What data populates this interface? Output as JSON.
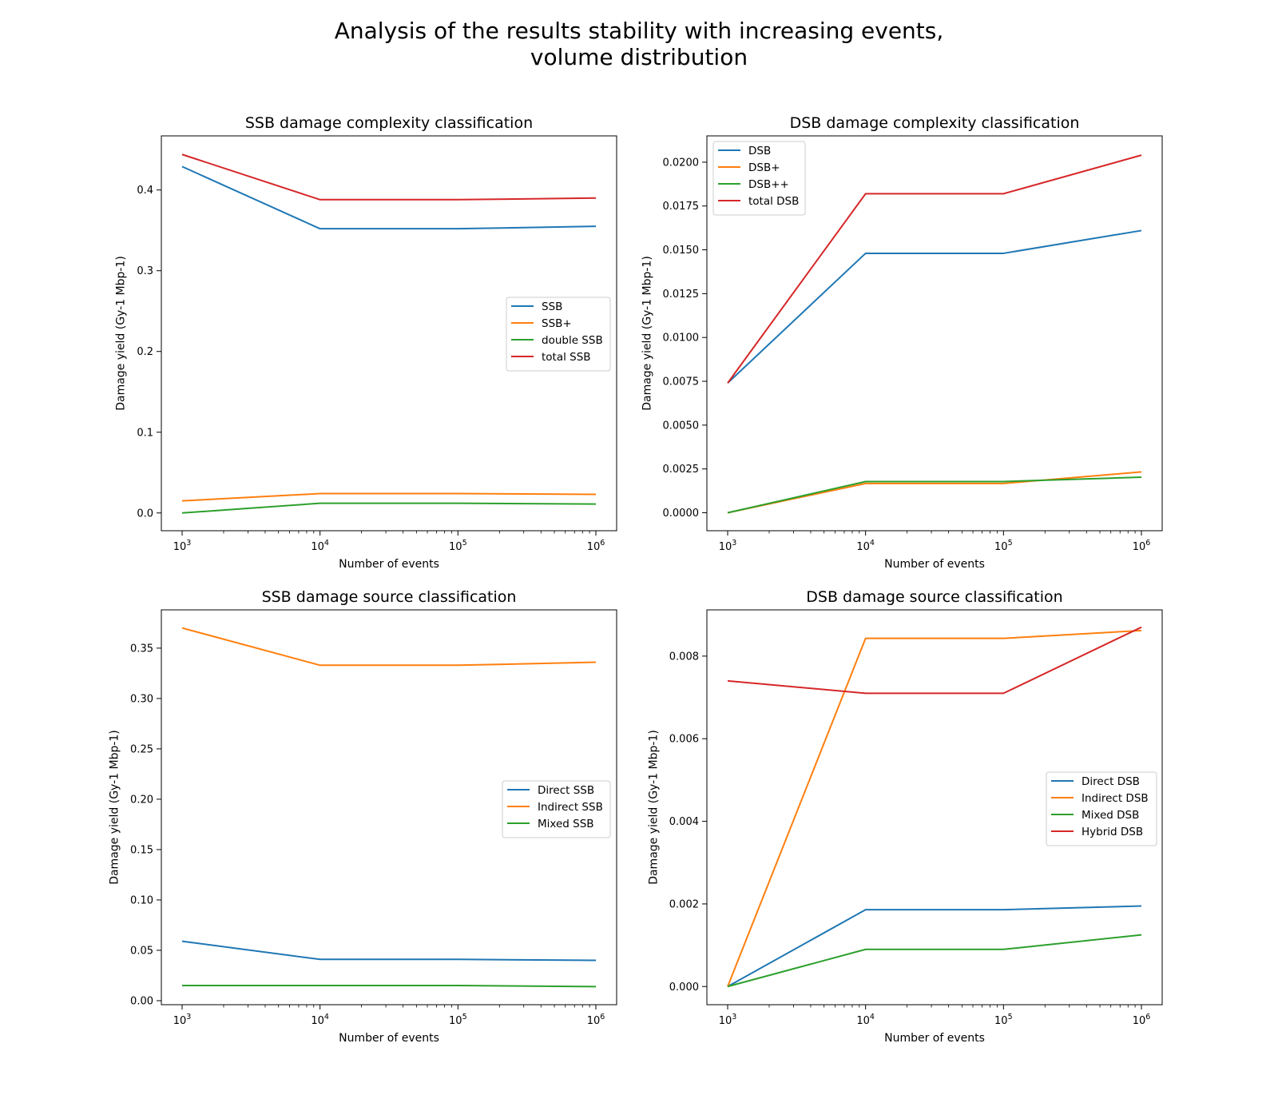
{
  "suptitle": {
    "line1": "Analysis of the results stability with increasing events,",
    "line2": "volume distribution"
  },
  "colors": {
    "blue": "#1f77b4",
    "orange": "#ff7f0e",
    "green": "#2ca02c",
    "red": "#d62728"
  },
  "chart_data": [
    {
      "type": "line",
      "title": "SSB damage complexity classification",
      "xlabel": "Number of events",
      "ylabel": "Damage yield (Gy-1 Mbp-1)",
      "xscale": "log",
      "x": [
        1000,
        10000,
        100000,
        1000000
      ],
      "xticks": [
        1000,
        10000,
        100000,
        1000000
      ],
      "xtick_labels": [
        [
          "10",
          "3"
        ],
        [
          "10",
          "4"
        ],
        [
          "10",
          "5"
        ],
        [
          "10",
          "6"
        ]
      ],
      "ylim": [
        -0.022,
        0.467
      ],
      "yticks": [
        0.0,
        0.1,
        0.2,
        0.3,
        0.4
      ],
      "ytick_labels": [
        "0.0",
        "0.1",
        "0.2",
        "0.3",
        "0.4"
      ],
      "legend_position": "center-right",
      "series": [
        {
          "name": "SSB",
          "color": "#1f77b4",
          "values": [
            0.429,
            0.352,
            0.352,
            0.355
          ]
        },
        {
          "name": "SSB+",
          "color": "#ff7f0e",
          "values": [
            0.015,
            0.024,
            0.024,
            0.023
          ]
        },
        {
          "name": "double SSB",
          "color": "#2ca02c",
          "values": [
            0.0,
            0.012,
            0.012,
            0.011
          ]
        },
        {
          "name": "total SSB",
          "color": "#d62728",
          "values": [
            0.444,
            0.388,
            0.388,
            0.39
          ]
        }
      ]
    },
    {
      "type": "line",
      "title": "DSB damage complexity classification",
      "xlabel": "Number of events",
      "ylabel": "Damage yield (Gy-1 Mbp-1)",
      "xscale": "log",
      "x": [
        1000,
        10000,
        100000,
        1000000
      ],
      "xticks": [
        1000,
        10000,
        100000,
        1000000
      ],
      "xtick_labels": [
        [
          "10",
          "3"
        ],
        [
          "10",
          "4"
        ],
        [
          "10",
          "5"
        ],
        [
          "10",
          "6"
        ]
      ],
      "ylim": [
        -0.001025,
        0.0215
      ],
      "yticks": [
        0.0,
        0.0025,
        0.005,
        0.0075,
        0.01,
        0.0125,
        0.015,
        0.0175,
        0.02
      ],
      "ytick_labels": [
        "0.0000",
        "0.0025",
        "0.0050",
        "0.0075",
        "0.0100",
        "0.0125",
        "0.0150",
        "0.0175",
        "0.0200"
      ],
      "legend_position": "upper-left",
      "series": [
        {
          "name": "DSB",
          "color": "#1f77b4",
          "values": [
            0.0074,
            0.0148,
            0.0148,
            0.0161
          ]
        },
        {
          "name": "DSB+",
          "color": "#ff7f0e",
          "values": [
            0.0,
            0.00167,
            0.00167,
            0.00233
          ]
        },
        {
          "name": "DSB++",
          "color": "#2ca02c",
          "values": [
            0.0,
            0.00178,
            0.00178,
            0.00203
          ]
        },
        {
          "name": "total DSB",
          "color": "#d62728",
          "values": [
            0.0074,
            0.0182,
            0.0182,
            0.0204
          ]
        }
      ]
    },
    {
      "type": "line",
      "title": "SSB damage source classification",
      "xlabel": "Number of events",
      "ylabel": "Damage yield (Gy-1 Mbp-1)",
      "xscale": "log",
      "x": [
        1000,
        10000,
        100000,
        1000000
      ],
      "xticks": [
        1000,
        10000,
        100000,
        1000000
      ],
      "xtick_labels": [
        [
          "10",
          "3"
        ],
        [
          "10",
          "4"
        ],
        [
          "10",
          "5"
        ],
        [
          "10",
          "6"
        ]
      ],
      "ylim": [
        -0.004,
        0.388
      ],
      "yticks": [
        0.0,
        0.05,
        0.1,
        0.15,
        0.2,
        0.25,
        0.3,
        0.35
      ],
      "ytick_labels": [
        "0.00",
        "0.05",
        "0.10",
        "0.15",
        "0.20",
        "0.25",
        "0.30",
        "0.35"
      ],
      "legend_position": "center-right",
      "series": [
        {
          "name": "Direct SSB",
          "color": "#1f77b4",
          "values": [
            0.059,
            0.041,
            0.041,
            0.04
          ]
        },
        {
          "name": "Indirect SSB",
          "color": "#ff7f0e",
          "values": [
            0.37,
            0.333,
            0.333,
            0.336
          ]
        },
        {
          "name": "Mixed SSB",
          "color": "#2ca02c",
          "values": [
            0.015,
            0.015,
            0.015,
            0.014
          ]
        }
      ]
    },
    {
      "type": "line",
      "title": "DSB damage source classification",
      "xlabel": "Number of events",
      "ylabel": "Damage yield (Gy-1 Mbp-1)",
      "xscale": "log",
      "x": [
        1000,
        10000,
        100000,
        1000000
      ],
      "xticks": [
        1000,
        10000,
        100000,
        1000000
      ],
      "xtick_labels": [
        [
          "10",
          "3"
        ],
        [
          "10",
          "4"
        ],
        [
          "10",
          "5"
        ],
        [
          "10",
          "6"
        ]
      ],
      "ylim": [
        -0.00044,
        0.00912
      ],
      "yticks": [
        0.0,
        0.002,
        0.004,
        0.006,
        0.008
      ],
      "ytick_labels": [
        "0.000",
        "0.002",
        "0.004",
        "0.006",
        "0.008"
      ],
      "legend_position": "center-right",
      "series": [
        {
          "name": "Direct DSB",
          "color": "#1f77b4",
          "values": [
            0.0,
            0.00186,
            0.00186,
            0.00195
          ]
        },
        {
          "name": "Indirect DSB",
          "color": "#ff7f0e",
          "values": [
            0.0,
            0.00843,
            0.00843,
            0.00862
          ]
        },
        {
          "name": "Mixed DSB",
          "color": "#2ca02c",
          "values": [
            0.0,
            0.0009,
            0.0009,
            0.00125
          ]
        },
        {
          "name": "Hybrid DSB",
          "color": "#d62728",
          "values": [
            0.0074,
            0.0071,
            0.0071,
            0.0087
          ]
        }
      ]
    }
  ]
}
